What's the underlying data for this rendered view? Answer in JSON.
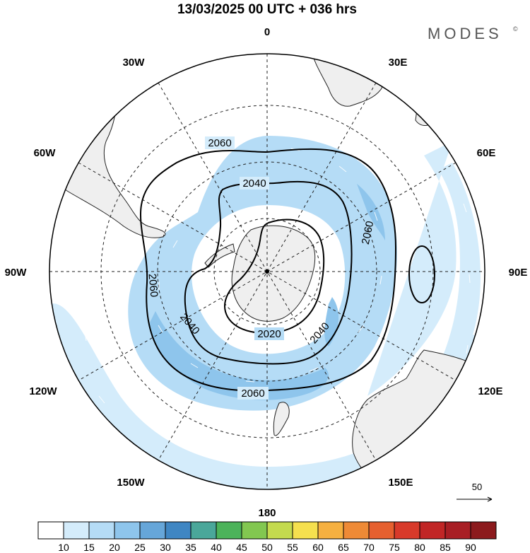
{
  "header": {
    "title": "13/03/2025  00 UTC  + 036 hrs",
    "brand": "MODES",
    "brand_mark": "©"
  },
  "map": {
    "projection": "south-polar-stereographic",
    "longitude_labels": [
      {
        "text": "0",
        "lon": 0
      },
      {
        "text": "30E",
        "lon": 30
      },
      {
        "text": "60E",
        "lon": 60
      },
      {
        "text": "90E",
        "lon": 90
      },
      {
        "text": "120E",
        "lon": 120
      },
      {
        "text": "150E",
        "lon": 150
      },
      {
        "text": "180",
        "lon": 180
      },
      {
        "text": "150W",
        "lon": -150
      },
      {
        "text": "120W",
        "lon": -120
      },
      {
        "text": "90W",
        "lon": -90
      },
      {
        "text": "60W",
        "lon": -60
      },
      {
        "text": "30W",
        "lon": -30
      }
    ],
    "contour_labels": [
      "2060",
      "2040",
      "2060",
      "2060",
      "2040",
      "2060",
      "2020",
      "2040"
    ],
    "vector_reference": "50",
    "colors": {
      "land": "#efefef",
      "ocean": "#ffffff",
      "shade_10_15": "#d4ecfb",
      "shade_15_20": "#b5dcf6",
      "shade_20_25": "#8ec5ec"
    }
  },
  "colorbar": {
    "labels": [
      "10",
      "15",
      "20",
      "25",
      "30",
      "35",
      "40",
      "45",
      "50",
      "55",
      "60",
      "65",
      "70",
      "75",
      "80",
      "85",
      "90"
    ],
    "colors": [
      "#ffffff",
      "#d4ecfb",
      "#b5dcf6",
      "#8ec5ec",
      "#66a6d9",
      "#3f86c3",
      "#4aa79a",
      "#4cb35a",
      "#82c750",
      "#c4da4e",
      "#f5e04e",
      "#f5b040",
      "#ee8a36",
      "#e6602f",
      "#d83a2a",
      "#c12626",
      "#a81e24",
      "#8c1a1d"
    ]
  }
}
